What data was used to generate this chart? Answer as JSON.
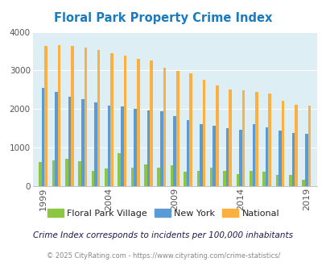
{
  "title": "Floral Park Property Crime Index",
  "title_color": "#1a7bbf",
  "subtitle": "Crime Index corresponds to incidents per 100,000 inhabitants",
  "footer": "© 2025 CityRating.com - https://www.cityrating.com/crime-statistics/",
  "years": [
    1999,
    2000,
    2001,
    2002,
    2003,
    2004,
    2005,
    2006,
    2007,
    2008,
    2009,
    2010,
    2011,
    2012,
    2013,
    2014,
    2015,
    2016,
    2017,
    2018,
    2019
  ],
  "floral_park": [
    620,
    660,
    720,
    650,
    400,
    460,
    860,
    490,
    560,
    490,
    540,
    370,
    390,
    490,
    400,
    310,
    390,
    380,
    290,
    290,
    160
  ],
  "new_york": [
    2560,
    2440,
    2330,
    2250,
    2180,
    2100,
    2060,
    2000,
    1970,
    1950,
    1820,
    1720,
    1610,
    1560,
    1510,
    1460,
    1600,
    1530,
    1450,
    1380,
    1350
  ],
  "national": [
    3640,
    3660,
    3640,
    3600,
    3540,
    3450,
    3380,
    3310,
    3260,
    3070,
    2980,
    2930,
    2760,
    2620,
    2510,
    2490,
    2450,
    2400,
    2210,
    2120,
    2100
  ],
  "bar_color_floral": "#8dc641",
  "bar_color_ny": "#5b9bd5",
  "bar_color_national": "#fbb040",
  "bg_color": "#ddeef4",
  "ylim": [
    0,
    4000
  ],
  "yticks": [
    0,
    1000,
    2000,
    3000,
    4000
  ],
  "xtick_years": [
    1999,
    2004,
    2009,
    2014,
    2019
  ]
}
